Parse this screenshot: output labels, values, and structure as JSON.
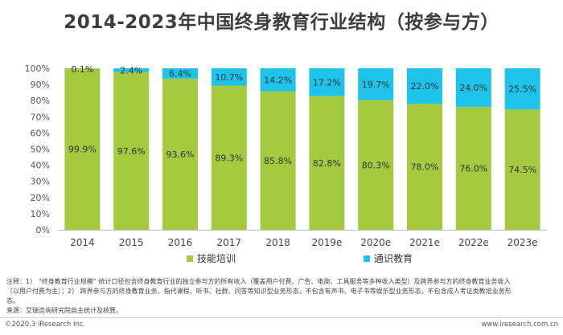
{
  "title": "2014-2023年中国终身教育行业结构（按参与方）",
  "colors": {
    "skill": "#a5c93f",
    "general": "#1ec3eb"
  },
  "chart_data": {
    "type": "bar",
    "stacked": true,
    "categories": [
      "2014",
      "2015",
      "2016",
      "2017",
      "2018",
      "2019e",
      "2020e",
      "2021e",
      "2022e",
      "2023e"
    ],
    "series": [
      {
        "name": "技能培训",
        "values": [
          99.9,
          97.6,
          93.6,
          89.3,
          85.8,
          82.8,
          80.3,
          78.0,
          76.0,
          74.5
        ],
        "labels": [
          "99.9%",
          "97.6%",
          "93.6%",
          "89.3%",
          "85.8%",
          "82.8%",
          "80.3%",
          "78.0%",
          "76.0%",
          "74.5%"
        ]
      },
      {
        "name": "通识教育",
        "values": [
          0.1,
          2.4,
          6.4,
          10.7,
          14.2,
          17.2,
          19.7,
          22.0,
          24.0,
          25.5
        ],
        "labels": [
          "0.1%",
          "2.4%",
          "6.4%",
          "10.7%",
          "14.2%",
          "17.2%",
          "19.7%",
          "22.0%",
          "24.0%",
          "25.5%"
        ]
      }
    ],
    "ylim": [
      0,
      100
    ],
    "yticks": [
      "0%",
      "10%",
      "20%",
      "30%",
      "40%",
      "50%",
      "60%",
      "70%",
      "80%",
      "90%",
      "100%"
    ],
    "grid": false,
    "legend_position": "bottom"
  },
  "notes": {
    "line1": "注释：1） “终身教育行业规模” 统计口径包含终身教育行业的独立参与方的所有收入（覆盖用户付费、广告、电商、工具服务等多种收入类型）及跨界参与方的终身教育业务收入",
    "line2": "（以用户付费为主）；2） 跨界参与方的终身教育业务，指代课程、听书、社群、问答等知识型业务形态，不包含有声书、电子书等娱乐型业务形态，不包含成人考证类教培业务形",
    "line3": "态。",
    "source": "来源：艾瑞咨询研究院自主统计及核算。"
  },
  "footer": {
    "left": "©2020.3 iResearch Inc.",
    "right": "www.iresearch.com.cn"
  }
}
